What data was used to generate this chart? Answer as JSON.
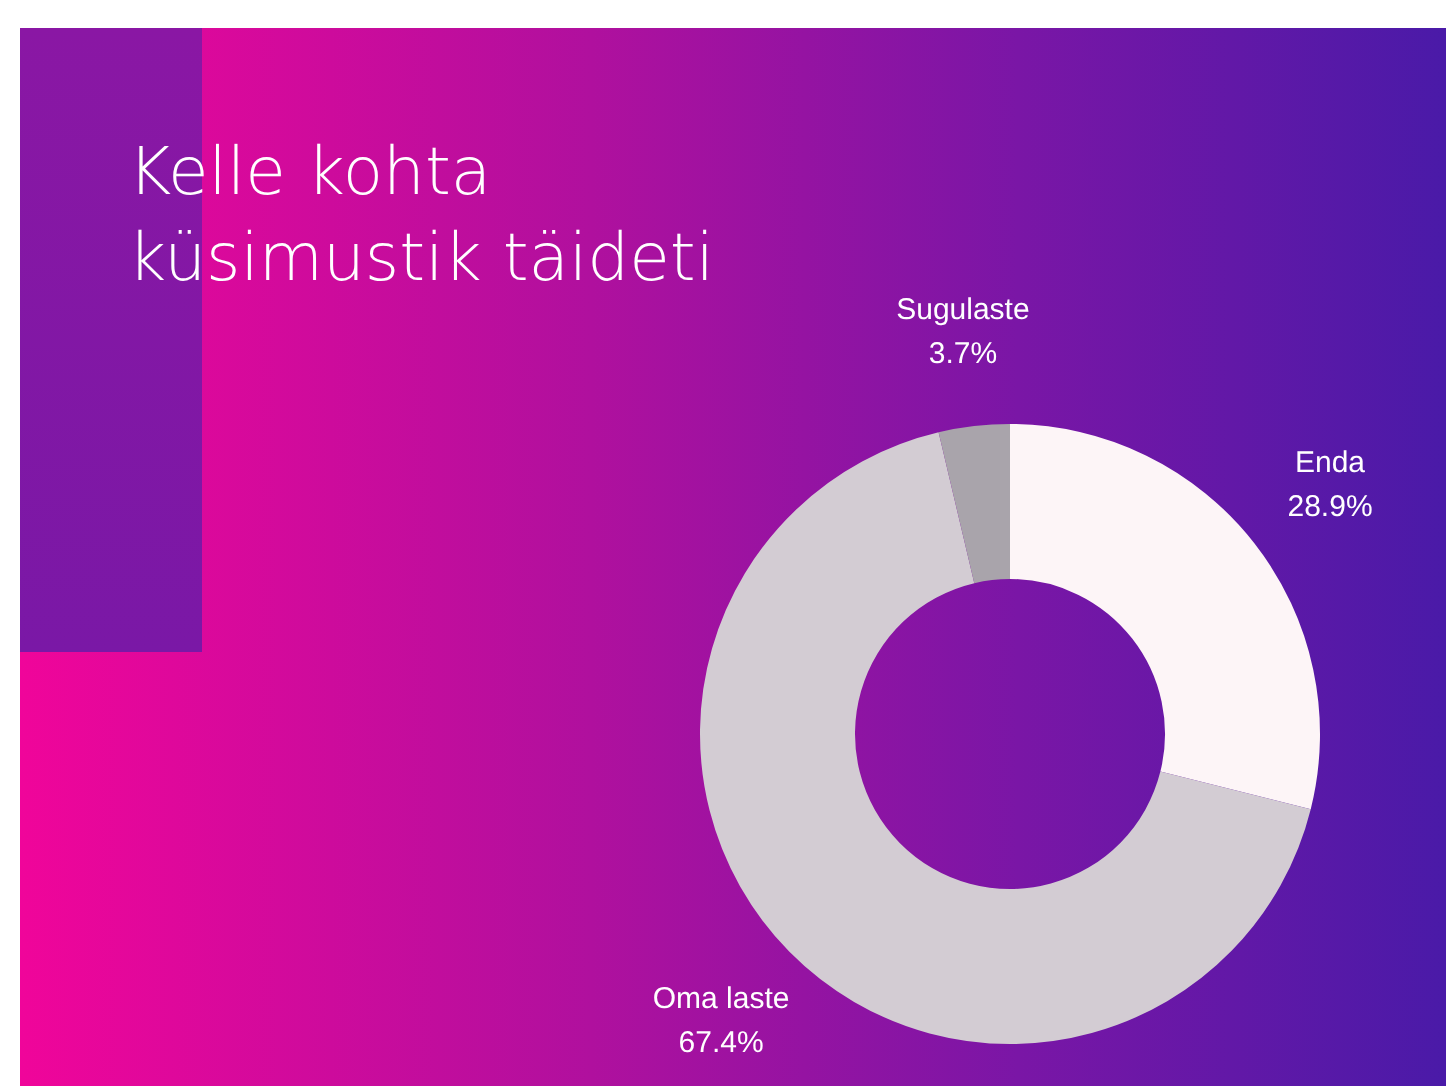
{
  "chart_data": {
    "type": "donut",
    "title": "Kelle kohta küsimustik täideti",
    "categories": [
      "Enda",
      "Oma laste",
      "Sugulaste"
    ],
    "values": [
      28.9,
      67.4,
      3.7
    ],
    "colors": [
      "#fdf5f7",
      "#d3ccd3",
      "#a9a4ab"
    ],
    "value_labels": [
      "28.9%",
      "67.4%",
      "3.7%"
    ]
  }
}
